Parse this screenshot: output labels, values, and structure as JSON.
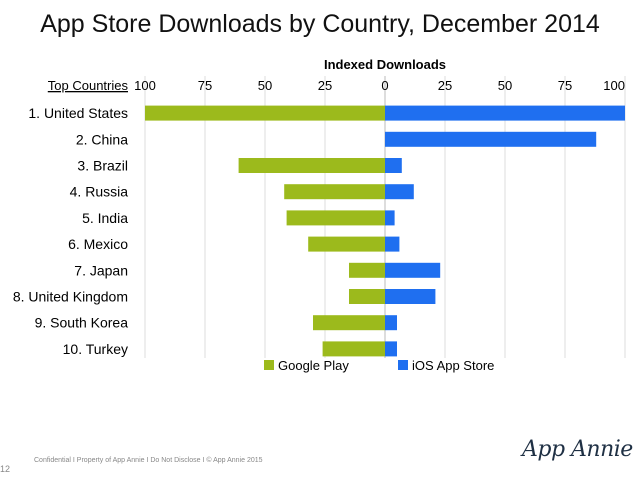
{
  "title": "App Store Downloads by Country, December 2014",
  "chart_data": {
    "type": "bar",
    "orientation": "horizontal-diverging",
    "axis_title": "Indexed Downloads",
    "category_header": "Top Countries",
    "categories": [
      "1. United States",
      "2. China",
      "3. Brazil",
      "4. Russia",
      "5. India",
      "6. Mexico",
      "7. Japan",
      "8. United Kingdom",
      "9. South Korea",
      "10. Turkey"
    ],
    "series": [
      {
        "name": "Google Play",
        "color": "#9cba1c",
        "side": "left",
        "values": [
          100,
          0,
          61,
          42,
          41,
          32,
          15,
          15,
          30,
          26
        ]
      },
      {
        "name": "iOS App Store",
        "color": "#1f6ff0",
        "side": "right",
        "values": [
          100,
          88,
          7,
          12,
          4,
          6,
          23,
          21,
          5,
          5
        ]
      }
    ],
    "xticks_left": [
      "100",
      "75",
      "50",
      "25"
    ],
    "xticks_right": [
      "0",
      "25",
      "50",
      "75",
      "100"
    ],
    "xlim": [
      -100,
      100
    ],
    "grid": true,
    "legend": "bottom-center"
  },
  "footer": "Confidential  I  Property of App Annie  I  Do Not Disclose  I  © App Annie 2015",
  "page_number": "12",
  "logo_text": "App Annie"
}
